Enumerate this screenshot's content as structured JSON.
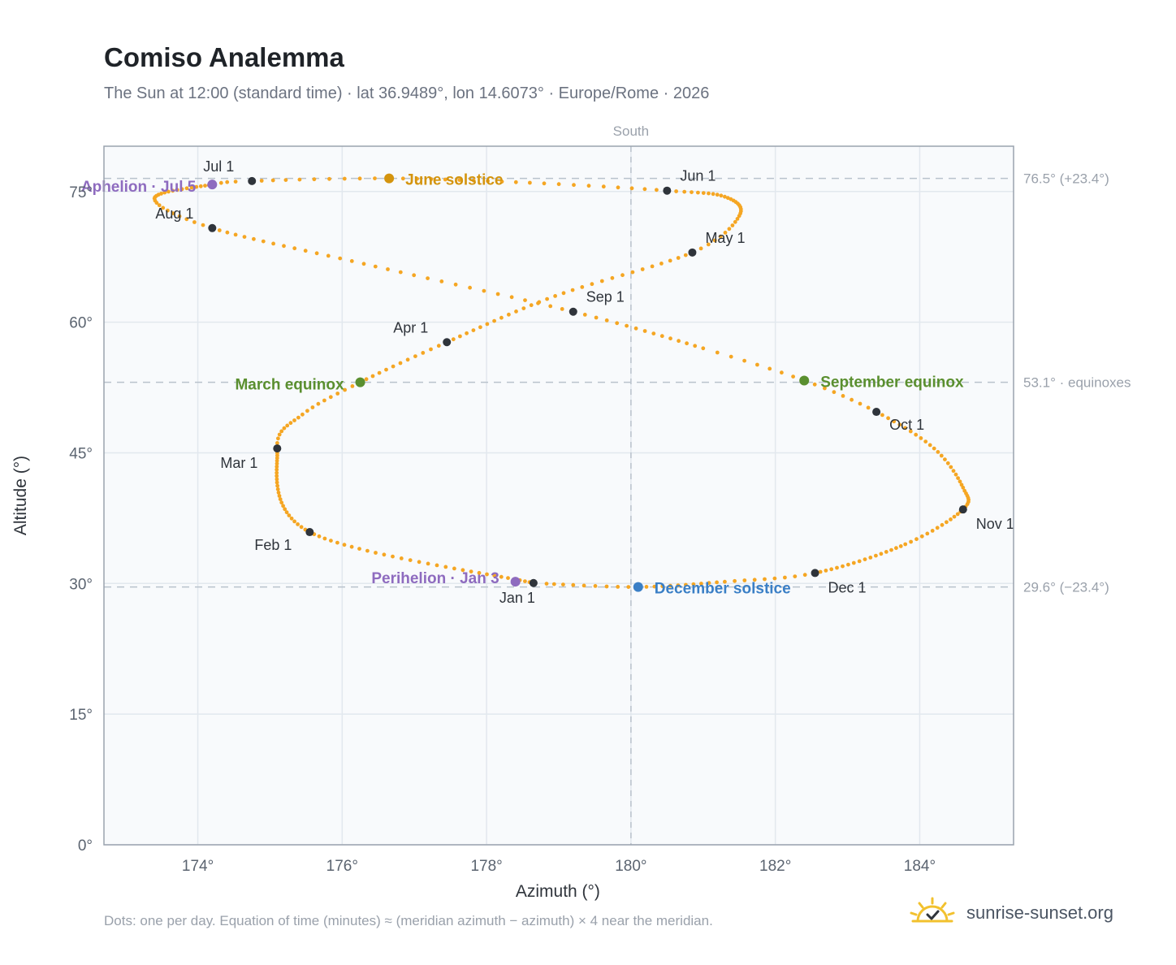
{
  "title": "Comiso Analemma",
  "subtitle": "The Sun at 12:00 (standard time) · lat 36.9489°, lon 14.6073° · Europe/Rome · 2026",
  "footnote": "Dots: one per day. Equation of time (minutes) ≈ (meridian azimuth − azimuth) × 4 near the meridian.",
  "brand": {
    "name": "sunrise-sunset.org",
    "icon": "sun-check-logo"
  },
  "colors": {
    "curve": "#f5a623",
    "month_marker": "#2f343b",
    "solstice_june": "#d4940e",
    "equinox": "#5a8f2f",
    "solstice_dec": "#3a7fc6",
    "apsis": "#8e6bbf",
    "reference_line": "#b9c2cc",
    "plot_bg": "#f8fafc",
    "grid": "#e2e8ee",
    "frame": "#9aa3ae"
  },
  "chart_data": {
    "type": "scatter",
    "title": "Comiso Analemma",
    "xlabel": "Azimuth (°)",
    "ylabel": "Altitude (°)",
    "xlim": [
      172.7,
      185.3
    ],
    "ylim": [
      0,
      80.2
    ],
    "xticks": [
      {
        "value": 174,
        "label": "174°"
      },
      {
        "value": 176,
        "label": "176°"
      },
      {
        "value": 178,
        "label": "178°"
      },
      {
        "value": 180,
        "label": "180°"
      },
      {
        "value": 182,
        "label": "182°"
      },
      {
        "value": 184,
        "label": "184°"
      }
    ],
    "yticks": [
      {
        "value": 0,
        "label": "0°"
      },
      {
        "value": 15,
        "label": "15°"
      },
      {
        "value": 30,
        "label": "30°"
      },
      {
        "value": 45,
        "label": "45°"
      },
      {
        "value": 60,
        "label": "60°"
      },
      {
        "value": 75,
        "label": "75°"
      }
    ],
    "grid": true,
    "vertical_reference": {
      "value": 180,
      "label": "South"
    },
    "horizontal_references": [
      {
        "value": 76.5,
        "label": "76.5° (+23.4°)"
      },
      {
        "value": 53.1,
        "label": "53.1° · equinoxes"
      },
      {
        "value": 29.6,
        "label": "29.6° (−23.4°)"
      }
    ],
    "daily_path": [
      {
        "day": 1,
        "az": 178.65,
        "alt": 30.05
      },
      {
        "day": 32,
        "az": 175.55,
        "alt": 35.9
      },
      {
        "day": 60,
        "az": 175.1,
        "alt": 45.5
      },
      {
        "day": 70,
        "az": 175.45,
        "alt": 49.4
      },
      {
        "day": 79,
        "az": 176.25,
        "alt": 53.1
      },
      {
        "day": 91,
        "az": 177.45,
        "alt": 57.7
      },
      {
        "day": 106,
        "az": 178.95,
        "alt": 63.0
      },
      {
        "day": 121,
        "az": 180.85,
        "alt": 68.0
      },
      {
        "day": 131,
        "az": 181.5,
        "alt": 72.2
      },
      {
        "day": 142,
        "az": 181.3,
        "alt": 74.4
      },
      {
        "day": 152,
        "az": 180.5,
        "alt": 75.1
      },
      {
        "day": 162,
        "az": 178.6,
        "alt": 76.0
      },
      {
        "day": 172,
        "az": 176.65,
        "alt": 76.5
      },
      {
        "day": 182,
        "az": 174.75,
        "alt": 76.2
      },
      {
        "day": 186,
        "az": 174.2,
        "alt": 75.8
      },
      {
        "day": 202,
        "az": 173.4,
        "alt": 74.2
      },
      {
        "day": 213,
        "az": 174.2,
        "alt": 70.8
      },
      {
        "day": 228,
        "az": 176.3,
        "alt": 66.7
      },
      {
        "day": 244,
        "az": 179.2,
        "alt": 61.2
      },
      {
        "day": 258,
        "az": 181.0,
        "alt": 57.0
      },
      {
        "day": 266,
        "az": 182.4,
        "alt": 53.3
      },
      {
        "day": 274,
        "az": 183.4,
        "alt": 49.7
      },
      {
        "day": 285,
        "az": 184.2,
        "alt": 45.5
      },
      {
        "day": 296,
        "az": 184.6,
        "alt": 41.0
      },
      {
        "day": 305,
        "az": 184.6,
        "alt": 38.5
      },
      {
        "day": 318,
        "az": 183.8,
        "alt": 34.5
      },
      {
        "day": 335,
        "az": 182.55,
        "alt": 31.2
      },
      {
        "day": 344,
        "az": 181.3,
        "alt": 30.2
      },
      {
        "day": 355,
        "az": 180.1,
        "alt": 29.6
      },
      {
        "day": 365,
        "az": 178.75,
        "alt": 30.0
      }
    ],
    "month_markers": [
      {
        "label": "Jan 1",
        "az": 178.65,
        "alt": 30.05
      },
      {
        "label": "Feb 1",
        "az": 175.55,
        "alt": 35.9
      },
      {
        "label": "Mar 1",
        "az": 175.1,
        "alt": 45.5
      },
      {
        "label": "Apr 1",
        "az": 177.45,
        "alt": 57.7
      },
      {
        "label": "May 1",
        "az": 180.85,
        "alt": 68.0
      },
      {
        "label": "Jun 1",
        "az": 180.5,
        "alt": 75.1
      },
      {
        "label": "Jul 1",
        "az": 174.75,
        "alt": 76.2
      },
      {
        "label": "Aug 1",
        "az": 174.2,
        "alt": 70.8
      },
      {
        "label": "Sep 1",
        "az": 179.2,
        "alt": 61.2
      },
      {
        "label": "Oct 1",
        "az": 183.4,
        "alt": 49.7
      },
      {
        "label": "Nov 1",
        "az": 184.6,
        "alt": 38.5
      },
      {
        "label": "Dec 1",
        "az": 182.55,
        "alt": 31.2
      }
    ],
    "events": [
      {
        "label": "June solstice",
        "az": 176.65,
        "alt": 76.5,
        "kind": "solstice_june"
      },
      {
        "label": "March equinox",
        "az": 176.25,
        "alt": 53.1,
        "kind": "equinox"
      },
      {
        "label": "September equinox",
        "az": 182.4,
        "alt": 53.3,
        "kind": "equinox"
      },
      {
        "label": "December solstice",
        "az": 180.1,
        "alt": 29.6,
        "kind": "solstice_dec"
      },
      {
        "label": "Aphelion · Jul 5",
        "az": 174.2,
        "alt": 75.8,
        "kind": "apsis"
      },
      {
        "label": "Perihelion · Jan 3",
        "az": 178.4,
        "alt": 30.2,
        "kind": "apsis"
      }
    ]
  }
}
